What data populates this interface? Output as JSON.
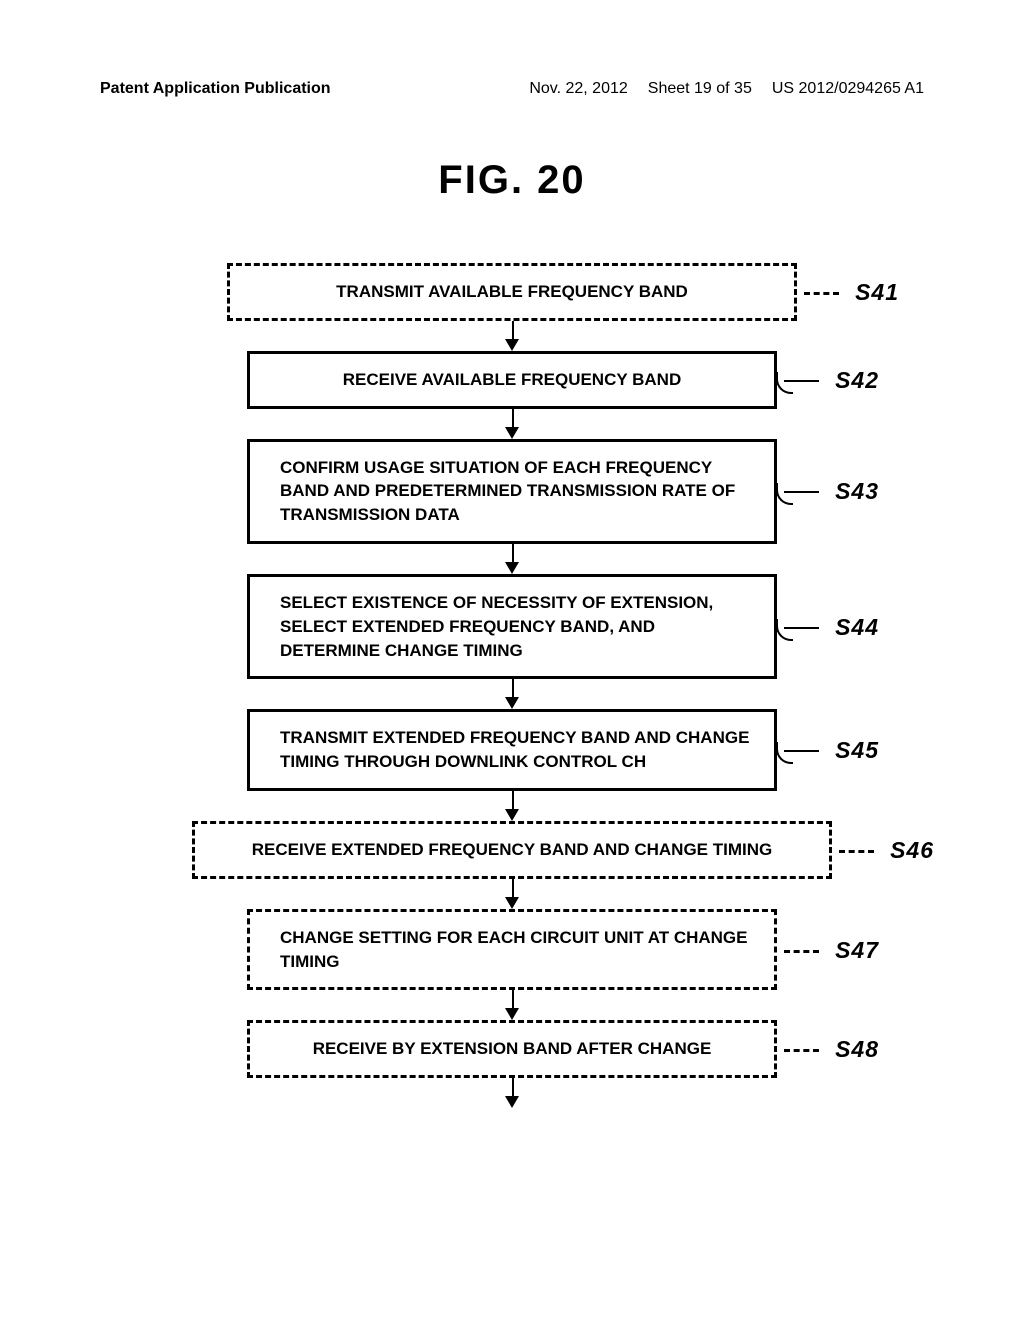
{
  "header": {
    "left": "Patent Application Publication",
    "date": "Nov. 22, 2012",
    "sheet": "Sheet 19 of 35",
    "docnum": "US 2012/0294265 A1"
  },
  "figure_title": "FIG. 20",
  "steps": [
    {
      "id": "s41",
      "label": "S41",
      "text": "TRANSMIT AVAILABLE FREQUENCY BAND",
      "style": "dashed-box",
      "centered": true
    },
    {
      "id": "s42",
      "label": "S42",
      "text": "RECEIVE AVAILABLE FREQUENCY BAND",
      "style": "solid-box",
      "centered": true
    },
    {
      "id": "s43",
      "label": "S43",
      "text": "CONFIRM USAGE SITUATION OF EACH FREQUENCY BAND AND PREDETERMINED TRANSMISSION RATE OF TRANSMISSION DATA",
      "style": "solid-box",
      "centered": false
    },
    {
      "id": "s44",
      "label": "S44",
      "text": "SELECT EXISTENCE OF NECESSITY OF EXTENSION, SELECT EXTENDED FREQUENCY BAND, AND DETERMINE CHANGE TIMING",
      "style": "solid-box",
      "centered": false
    },
    {
      "id": "s45",
      "label": "S45",
      "text": "TRANSMIT EXTENDED FREQUENCY BAND AND CHANGE TIMING THROUGH DOWNLINK CONTROL CH",
      "style": "solid-box",
      "centered": false
    },
    {
      "id": "s46",
      "label": "S46",
      "text": "RECEIVE EXTENDED FREQUENCY BAND AND CHANGE TIMING",
      "style": "dashed-wide",
      "centered": true
    },
    {
      "id": "s47",
      "label": "S47",
      "text": "CHANGE SETTING FOR EACH CIRCUIT UNIT AT CHANGE TIMING",
      "style": "dashed-mid",
      "centered": false
    },
    {
      "id": "s48",
      "label": "S48",
      "text": "RECEIVE BY EXTENSION BAND AFTER CHANGE",
      "style": "dashed-mid",
      "centered": true
    }
  ]
}
